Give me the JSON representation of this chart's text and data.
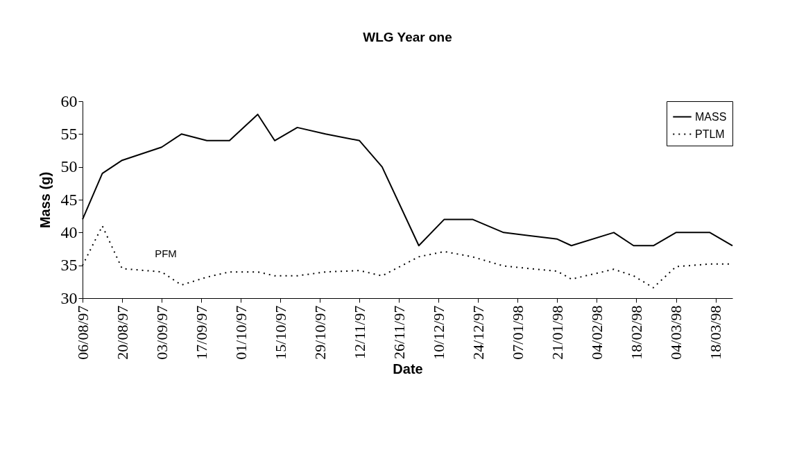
{
  "chart_data": {
    "type": "line",
    "title": "WLG Year one",
    "xlabel": "Date",
    "ylabel": "Mass (g)",
    "x": [
      "1997-08-06",
      "1997-08-13",
      "1997-08-20",
      "1997-09-03",
      "1997-09-10",
      "1997-09-19",
      "1997-09-27",
      "1997-10-07",
      "1997-10-13",
      "1997-10-21",
      "1997-10-31",
      "1997-11-12",
      "1997-11-20",
      "1997-12-03",
      "1997-12-12",
      "1997-12-22",
      "1998-01-02",
      "1998-01-21",
      "1998-01-26",
      "1998-02-10",
      "1998-02-17",
      "1998-02-24",
      "1998-03-04",
      "1998-03-16",
      "1998-03-24"
    ],
    "series": [
      {
        "name": "MASS",
        "color": "#000000",
        "line_style": "solid",
        "values": [
          42,
          49,
          51,
          53,
          55,
          54,
          54,
          58,
          54,
          56,
          55,
          54,
          50,
          38,
          42,
          42,
          40,
          39,
          38,
          40,
          38,
          38,
          40,
          40,
          38
        ]
      },
      {
        "name": "PTLM",
        "color": "#000000",
        "line_style": "dotted",
        "values": [
          35,
          41,
          34.5,
          34,
          32,
          33.2,
          34,
          34,
          33.4,
          33.4,
          34,
          34.2,
          33.4,
          36.3,
          37.1,
          36.3,
          34.9,
          34.1,
          32.9,
          34.4,
          33.4,
          31.6,
          34.8,
          35.2,
          35.2
        ]
      }
    ],
    "xlim": [
      "1997-08-06",
      "1998-03-24"
    ],
    "xticks": [
      {
        "value": "1997-08-06",
        "label": "06/08/97"
      },
      {
        "value": "1997-08-20",
        "label": "20/08/97"
      },
      {
        "value": "1997-09-03",
        "label": "03/09/97"
      },
      {
        "value": "1997-09-17",
        "label": "17/09/97"
      },
      {
        "value": "1997-10-01",
        "label": "01/10/97"
      },
      {
        "value": "1997-10-15",
        "label": "15/10/97"
      },
      {
        "value": "1997-10-29",
        "label": "29/10/97"
      },
      {
        "value": "1997-11-12",
        "label": "12/11/97"
      },
      {
        "value": "1997-11-26",
        "label": "26/11/97"
      },
      {
        "value": "1997-12-10",
        "label": "10/12/97"
      },
      {
        "value": "1997-12-24",
        "label": "24/12/97"
      },
      {
        "value": "1998-01-07",
        "label": "07/01/98"
      },
      {
        "value": "1998-01-21",
        "label": "21/01/98"
      },
      {
        "value": "1998-02-04",
        "label": "04/02/98"
      },
      {
        "value": "1998-02-18",
        "label": "18/02/98"
      },
      {
        "value": "1998-03-04",
        "label": "04/03/98"
      },
      {
        "value": "1998-03-18",
        "label": "18/03/98"
      }
    ],
    "ylim": [
      30,
      60
    ],
    "yticks": [
      30,
      35,
      40,
      45,
      50,
      55,
      60
    ],
    "legend": "top right",
    "grid": false,
    "annotations": [
      "PFM"
    ]
  }
}
